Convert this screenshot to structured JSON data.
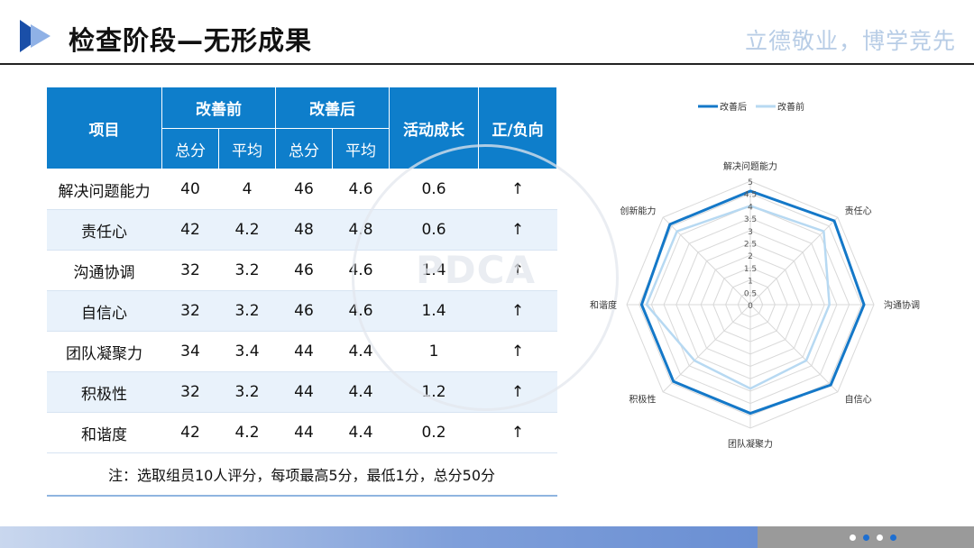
{
  "header": {
    "title": "检查阶段—无形成果",
    "motto": "立德敬业，博学竞先"
  },
  "table": {
    "head": {
      "item": "项目",
      "before": "改善前",
      "after": "改善后",
      "growth": "活动成长",
      "direction": "正/负向",
      "total": "总分",
      "avg": "平均"
    },
    "rows": [
      {
        "name": "解决问题能力",
        "before_total": "40",
        "before_avg": "4",
        "after_total": "46",
        "after_avg": "4.6",
        "growth": "0.6",
        "dir": "↑"
      },
      {
        "name": "责任心",
        "before_total": "42",
        "before_avg": "4.2",
        "after_total": "48",
        "after_avg": "4.8",
        "growth": "0.6",
        "dir": "↑"
      },
      {
        "name": "沟通协调",
        "before_total": "32",
        "before_avg": "3.2",
        "after_total": "46",
        "after_avg": "4.6",
        "growth": "1.4",
        "dir": "↑"
      },
      {
        "name": "自信心",
        "before_total": "32",
        "before_avg": "3.2",
        "after_total": "46",
        "after_avg": "4.6",
        "growth": "1.4",
        "dir": "↑"
      },
      {
        "name": "团队凝聚力",
        "before_total": "34",
        "before_avg": "3.4",
        "after_total": "44",
        "after_avg": "4.4",
        "growth": "1",
        "dir": "↑"
      },
      {
        "name": "积极性",
        "before_total": "32",
        "before_avg": "3.2",
        "after_total": "44",
        "after_avg": "4.4",
        "growth": "1.2",
        "dir": "↑"
      },
      {
        "name": "和谐度",
        "before_total": "42",
        "before_avg": "4.2",
        "after_total": "44",
        "after_avg": "4.4",
        "growth": "0.2",
        "dir": "↑"
      }
    ],
    "note": "注：选取组员10人评分，每项最高5分，最低1分，总分50分"
  },
  "watermark": {
    "text": "PDCA"
  },
  "chart_data": {
    "type": "radar",
    "categories": [
      "解决问题能力",
      "责任心",
      "沟通协调",
      "自信心",
      "团队凝聚力",
      "积极性",
      "和谐度",
      "创新能力"
    ],
    "series": [
      {
        "name": "改善后",
        "values": [
          4.6,
          4.8,
          4.6,
          4.6,
          4.4,
          4.4,
          4.4,
          4.6
        ],
        "color": "#1478c8"
      },
      {
        "name": "改善前",
        "values": [
          4,
          4.2,
          3.2,
          3.2,
          3.4,
          3.2,
          4.2,
          4.2
        ],
        "color": "#b7d9f2"
      }
    ],
    "rlim": [
      0,
      5
    ],
    "ticks": [
      "0",
      "0.5",
      "1",
      "1.5",
      "2",
      "2.5",
      "3",
      "3.5",
      "4",
      "4.5",
      "5"
    ],
    "legend": "top"
  },
  "footer": {
    "dot_colors": [
      "#ffffff",
      "#1e6fd1",
      "#ffffff",
      "#1e6fd1"
    ]
  }
}
